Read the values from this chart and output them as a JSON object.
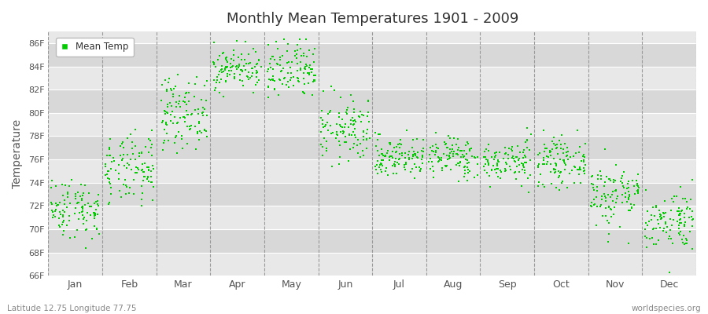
{
  "title": "Monthly Mean Temperatures 1901 - 2009",
  "ylabel": "Temperature",
  "subtitle_left": "Latitude 12.75 Longitude 77.75",
  "subtitle_right": "worldspecies.org",
  "legend_label": "Mean Temp",
  "dot_color": "#00cc00",
  "figure_bg": "#ffffff",
  "plot_bg": "#e8e8e8",
  "alt_band_color": "#d8d8d8",
  "grid_color": "#ffffff",
  "ylim": [
    66,
    87
  ],
  "yticks": [
    66,
    68,
    70,
    72,
    74,
    76,
    78,
    80,
    82,
    84,
    86
  ],
  "ytick_labels": [
    "66F",
    "68F",
    "70F",
    "72F",
    "74F",
    "76F",
    "78F",
    "80F",
    "82F",
    "84F",
    "86F"
  ],
  "month_names": [
    "Jan",
    "Feb",
    "Mar",
    "Apr",
    "May",
    "Jun",
    "Jul",
    "Aug",
    "Sep",
    "Oct",
    "Nov",
    "Dec"
  ],
  "monthly_means": [
    71.8,
    75.0,
    80.0,
    83.8,
    83.5,
    78.5,
    76.2,
    76.2,
    75.8,
    75.8,
    73.0,
    70.8
  ],
  "monthly_stds": [
    1.3,
    1.5,
    1.5,
    0.9,
    1.3,
    1.4,
    0.9,
    0.9,
    0.9,
    1.0,
    1.4,
    1.3
  ],
  "monthly_mins": [
    67.5,
    70.0,
    76.5,
    81.0,
    79.5,
    74.0,
    74.0,
    74.0,
    73.5,
    72.5,
    68.5,
    67.0
  ],
  "monthly_maxs": [
    74.5,
    78.0,
    82.5,
    86.0,
    85.5,
    81.5,
    79.0,
    78.5,
    79.0,
    79.5,
    78.5,
    74.5
  ],
  "years": 109,
  "seed": 42,
  "marker_size": 4,
  "dpi": 100,
  "figsize": [
    9.0,
    4.0
  ]
}
